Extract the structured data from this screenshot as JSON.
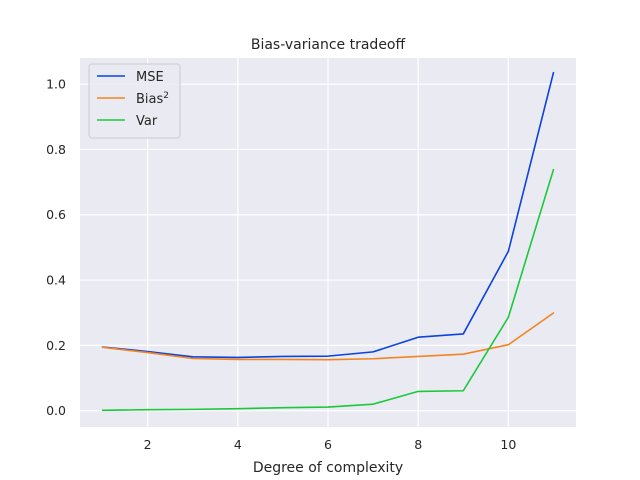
{
  "chart_data": {
    "type": "line",
    "title": "Bias-variance tradeoff",
    "xlabel": "Degree of complexity",
    "ylabel": "",
    "xlim": [
      0.5,
      11.5
    ],
    "ylim": [
      -0.05,
      1.08
    ],
    "xticks": [
      2,
      4,
      6,
      8,
      10
    ],
    "yticks": [
      0.0,
      0.2,
      0.4,
      0.6,
      0.8,
      1.0
    ],
    "xtick_labels": [
      "2",
      "4",
      "6",
      "8",
      "10"
    ],
    "ytick_labels": [
      "0.0",
      "0.2",
      "0.4",
      "0.6",
      "0.8",
      "1.0"
    ],
    "grid": true,
    "legend_position": "top-left",
    "x": [
      1,
      2,
      3,
      4,
      5,
      6,
      7,
      8,
      9,
      10,
      11
    ],
    "series": [
      {
        "name": "MSE",
        "color": "#0b43e0",
        "values": [
          0.195,
          0.181,
          0.165,
          0.163,
          0.166,
          0.167,
          0.18,
          0.225,
          0.235,
          0.488,
          1.035
        ]
      },
      {
        "name": "Bias",
        "name_sup": "2",
        "color": "#f28522",
        "values": [
          0.194,
          0.178,
          0.16,
          0.157,
          0.157,
          0.156,
          0.159,
          0.166,
          0.173,
          0.202,
          0.299
        ]
      },
      {
        "name": "Var",
        "color": "#1ac938",
        "values": [
          0.001,
          0.003,
          0.004,
          0.006,
          0.009,
          0.011,
          0.02,
          0.059,
          0.061,
          0.286,
          0.738
        ]
      }
    ]
  }
}
